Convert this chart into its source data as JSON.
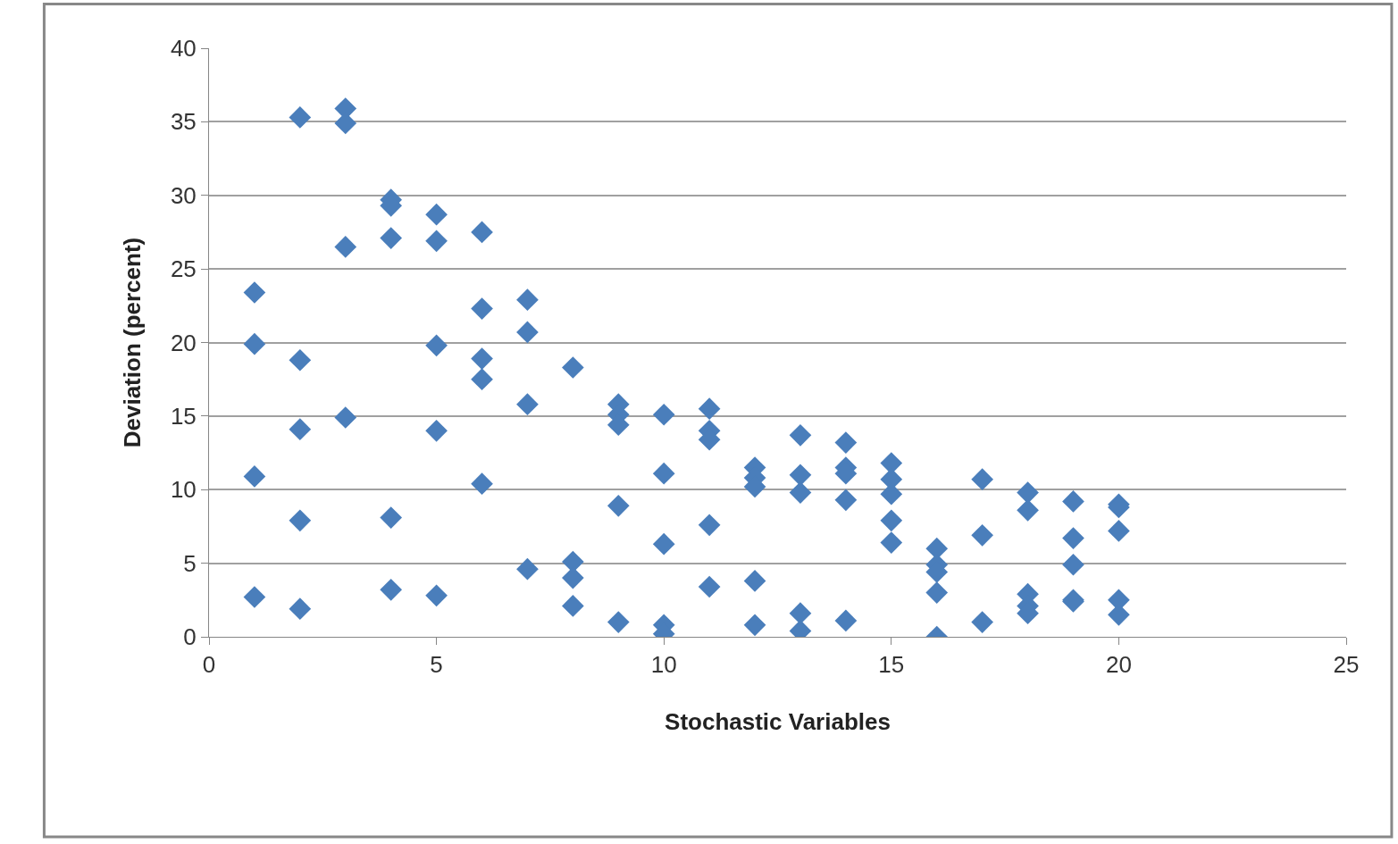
{
  "chart_data": {
    "type": "scatter",
    "xlabel": "Stochastic Variables",
    "ylabel": "Deviation (percent)",
    "x": [
      1,
      1,
      1,
      1,
      2,
      2,
      2,
      2,
      2,
      3,
      3,
      3,
      3,
      4,
      4,
      4,
      4,
      4,
      5,
      5,
      5,
      5,
      5,
      6,
      6,
      6,
      6,
      6,
      7,
      7,
      7,
      7,
      8,
      8,
      8,
      8,
      9,
      9,
      9,
      9,
      9,
      10,
      10,
      10,
      10,
      10,
      11,
      11,
      11,
      11,
      11,
      12,
      12,
      12,
      12,
      12,
      13,
      13,
      13,
      13,
      13,
      14,
      14,
      14,
      14,
      14,
      15,
      15,
      15,
      15,
      15,
      16,
      16,
      16,
      16,
      16,
      17,
      17,
      17,
      18,
      18,
      18,
      18,
      18,
      19,
      19,
      19,
      19,
      19,
      20,
      20,
      20,
      20,
      20
    ],
    "series": [
      {
        "color": "#4a7ebb",
        "values": [
          23.4,
          19.9,
          10.9,
          2.7,
          35.3,
          18.8,
          14.1,
          7.9,
          1.9,
          35.9,
          34.9,
          26.5,
          14.9,
          29.7,
          29.3,
          27.1,
          8.1,
          3.2,
          28.7,
          26.9,
          19.8,
          14.0,
          2.8,
          27.5,
          22.3,
          18.9,
          17.5,
          10.4,
          22.9,
          20.7,
          15.8,
          4.6,
          18.3,
          5.1,
          4.0,
          2.1,
          15.8,
          15.1,
          14.4,
          8.9,
          1.0,
          15.1,
          11.1,
          6.3,
          0.8,
          0.2,
          15.5,
          14.0,
          13.4,
          7.6,
          3.4,
          11.5,
          10.8,
          10.2,
          3.8,
          0.8,
          13.7,
          11.0,
          9.8,
          1.6,
          0.4,
          13.2,
          11.5,
          11.1,
          9.3,
          1.1,
          11.8,
          10.7,
          9.7,
          7.9,
          6.4,
          6.0,
          4.9,
          4.4,
          3.0,
          0,
          10.7,
          6.9,
          1.0,
          9.8,
          8.6,
          2.9,
          2.1,
          1.6,
          9.2,
          6.7,
          4.9,
          2.5,
          2.4,
          9.0,
          8.8,
          7.2,
          2.5,
          1.5
        ]
      }
    ],
    "xlim": [
      0,
      25
    ],
    "xticks": [
      0,
      5,
      10,
      15,
      20,
      25
    ],
    "ylim": [
      0,
      40
    ],
    "yticks": [
      0,
      5,
      10,
      15,
      20,
      25,
      30,
      35,
      40
    ],
    "grid": "y",
    "marker": "diamond",
    "legend": false
  }
}
